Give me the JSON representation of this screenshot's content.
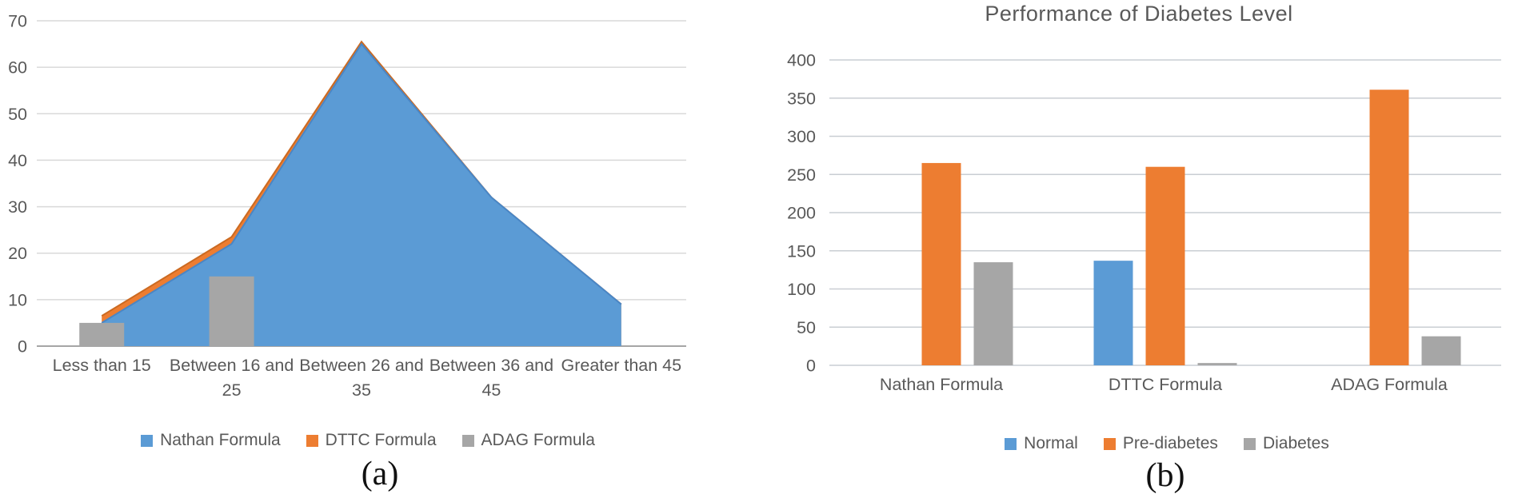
{
  "colors": {
    "blue": "#5B9BD5",
    "blue_edge": "#4A86C5",
    "orange": "#ED7D31",
    "orange_edge": "#CB6A21",
    "gray": "#A6A6A6",
    "text": "#595959",
    "grid_a": "#D9D9D9",
    "axis_a": "#A6A6A6",
    "grid_b": "#C9CED3",
    "axis_b": "#C9CED3"
  },
  "chart_data": [
    {
      "type": "area",
      "title": "",
      "caption": "(a)",
      "categories": [
        "Less than 15",
        "Between 16 and 25",
        "Between 26 and 35",
        "Between 36 and 45",
        "Greater than 45"
      ],
      "ylim": [
        0,
        70
      ],
      "ytick_step": 10,
      "grid": true,
      "legend_position": "bottom",
      "series": [
        {
          "name": "DTTC Formula",
          "render": "area",
          "color_key": "orange",
          "edge_key": "orange_edge",
          "values": [
            6.5,
            23.5,
            65.5,
            32,
            9
          ]
        },
        {
          "name": "Nathan Formula",
          "render": "area",
          "color_key": "blue",
          "edge_key": "blue_edge",
          "values": [
            5,
            22,
            65,
            32,
            9
          ]
        },
        {
          "name": "ADAG Formula",
          "render": "bar",
          "color_key": "gray",
          "values": [
            5,
            15,
            0,
            0,
            0
          ]
        }
      ],
      "legend": [
        {
          "label": "Nathan Formula",
          "color_key": "blue"
        },
        {
          "label": "DTTC Formula",
          "color_key": "orange"
        },
        {
          "label": "ADAG Formula",
          "color_key": "gray"
        }
      ]
    },
    {
      "type": "bar",
      "title": "Performance of Diabetes Level",
      "caption": "(b)",
      "categories": [
        "Nathan Formula",
        "DTTC Formula",
        "ADAG Formula"
      ],
      "ylim": [
        0,
        400
      ],
      "ytick_step": 50,
      "grid": true,
      "legend_position": "bottom",
      "series": [
        {
          "name": "Normal",
          "color_key": "blue",
          "values": [
            0,
            137,
            0
          ]
        },
        {
          "name": "Pre-diabetes",
          "color_key": "orange",
          "values": [
            265,
            260,
            361
          ]
        },
        {
          "name": "Diabetes",
          "color_key": "gray",
          "values": [
            135,
            3,
            38
          ]
        }
      ],
      "legend": [
        {
          "label": "Normal",
          "color_key": "blue"
        },
        {
          "label": "Pre-diabetes",
          "color_key": "orange"
        },
        {
          "label": "Diabetes",
          "color_key": "gray"
        }
      ]
    }
  ]
}
